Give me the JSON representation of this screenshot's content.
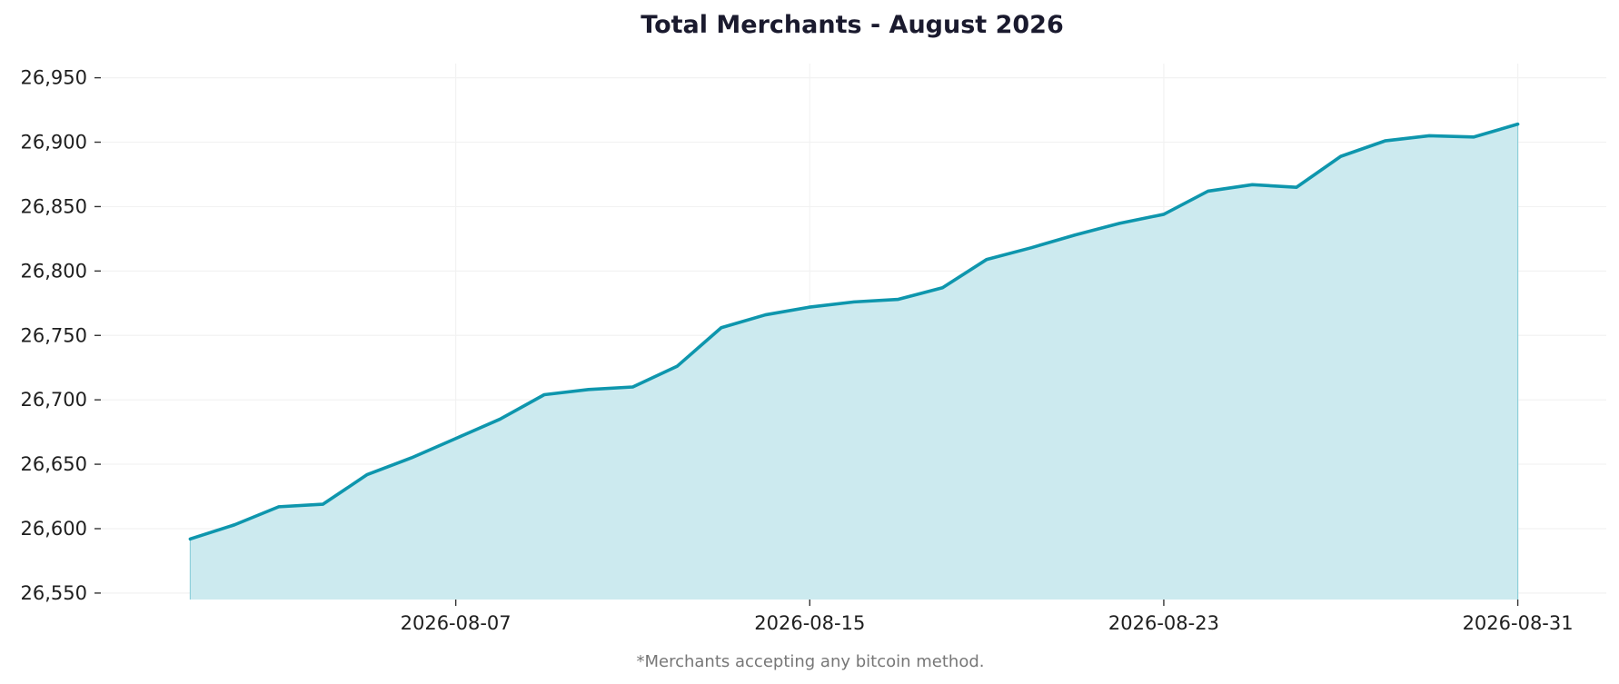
{
  "chart_data": {
    "type": "area",
    "title": "Total Merchants - August 2026",
    "footnote": "*Merchants accepting any bitcoin method.",
    "xlabel": "",
    "ylabel": "",
    "x": [
      "2026-08-01",
      "2026-08-02",
      "2026-08-03",
      "2026-08-04",
      "2026-08-05",
      "2026-08-06",
      "2026-08-07",
      "2026-08-08",
      "2026-08-09",
      "2026-08-10",
      "2026-08-11",
      "2026-08-12",
      "2026-08-13",
      "2026-08-14",
      "2026-08-15",
      "2026-08-16",
      "2026-08-17",
      "2026-08-18",
      "2026-08-19",
      "2026-08-20",
      "2026-08-21",
      "2026-08-22",
      "2026-08-23",
      "2026-08-24",
      "2026-08-25",
      "2026-08-26",
      "2026-08-27",
      "2026-08-28",
      "2026-08-29",
      "2026-08-30",
      "2026-08-31"
    ],
    "series": [
      {
        "values": [
          26592,
          26603,
          26617,
          26619,
          26642,
          26655,
          26670,
          26685,
          26704,
          26708,
          26710,
          26726,
          26756,
          26766,
          26772,
          26776,
          26778,
          26787,
          26809,
          26818,
          26828,
          26837,
          26844,
          26862,
          26867,
          26865,
          26889,
          26901,
          26905,
          26904,
          26914
        ]
      }
    ],
    "xticks": [
      "2026-08-07",
      "2026-08-15",
      "2026-08-23",
      "2026-08-31"
    ],
    "yticks": [
      26550,
      26600,
      26650,
      26700,
      26750,
      26800,
      26850,
      26900,
      26950
    ],
    "ytick_labels": [
      "26,550",
      "26,600",
      "26,650",
      "26,700",
      "26,750",
      "26,800",
      "26,850",
      "26,900",
      "26,950"
    ],
    "xlim": [
      "2026-07-30",
      "2026-09-02"
    ],
    "ylim": [
      26545,
      26961
    ],
    "area_baseline": 26545,
    "grid": true,
    "legend": "none",
    "colors": {
      "line": "#0e96ad",
      "fill": "#cceaef",
      "grid": "#f2f2f2",
      "title": "#1a1a2e",
      "text": "#1f1f1f",
      "footnote": "#777777"
    }
  }
}
